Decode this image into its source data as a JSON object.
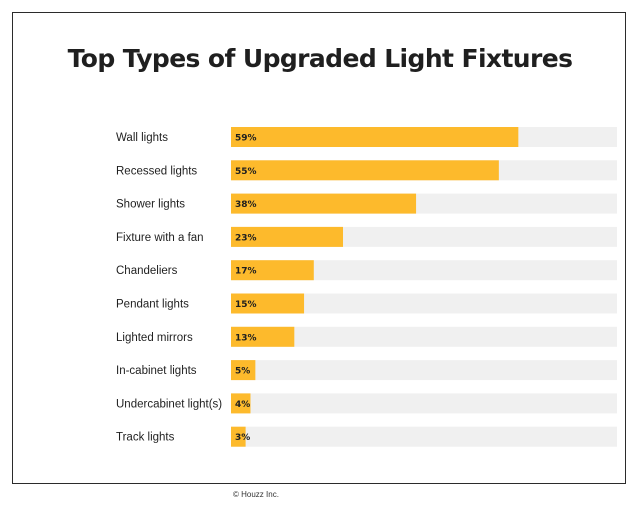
{
  "header": {
    "title": "Top Types of Upgraded Light Fixtures"
  },
  "footer": {
    "credit": "© Houzz Inc."
  },
  "colors": {
    "bar": "#FDBA2C",
    "track": "#F0F0F0",
    "text": "#1f1f1f"
  },
  "chart_data": {
    "type": "bar",
    "orientation": "horizontal",
    "title": "Top Types of Upgraded Light Fixtures",
    "categories": [
      "Wall lights",
      "Recessed lights",
      "Shower lights",
      "Fixture with a fan",
      "Chandeliers",
      "Pendant lights",
      "Lighted mirrors",
      "In-cabinet lights",
      "Undercabinet light(s)",
      "Track lights"
    ],
    "values": [
      59,
      55,
      38,
      23,
      17,
      15,
      13,
      5,
      4,
      3
    ],
    "value_labels": [
      "59%",
      "55%",
      "38%",
      "23%",
      "17%",
      "15%",
      "13%",
      "5%",
      "4%",
      "3%"
    ],
    "xlim": [
      0,
      100
    ],
    "unit": "%",
    "grid": false,
    "legend": "none"
  }
}
